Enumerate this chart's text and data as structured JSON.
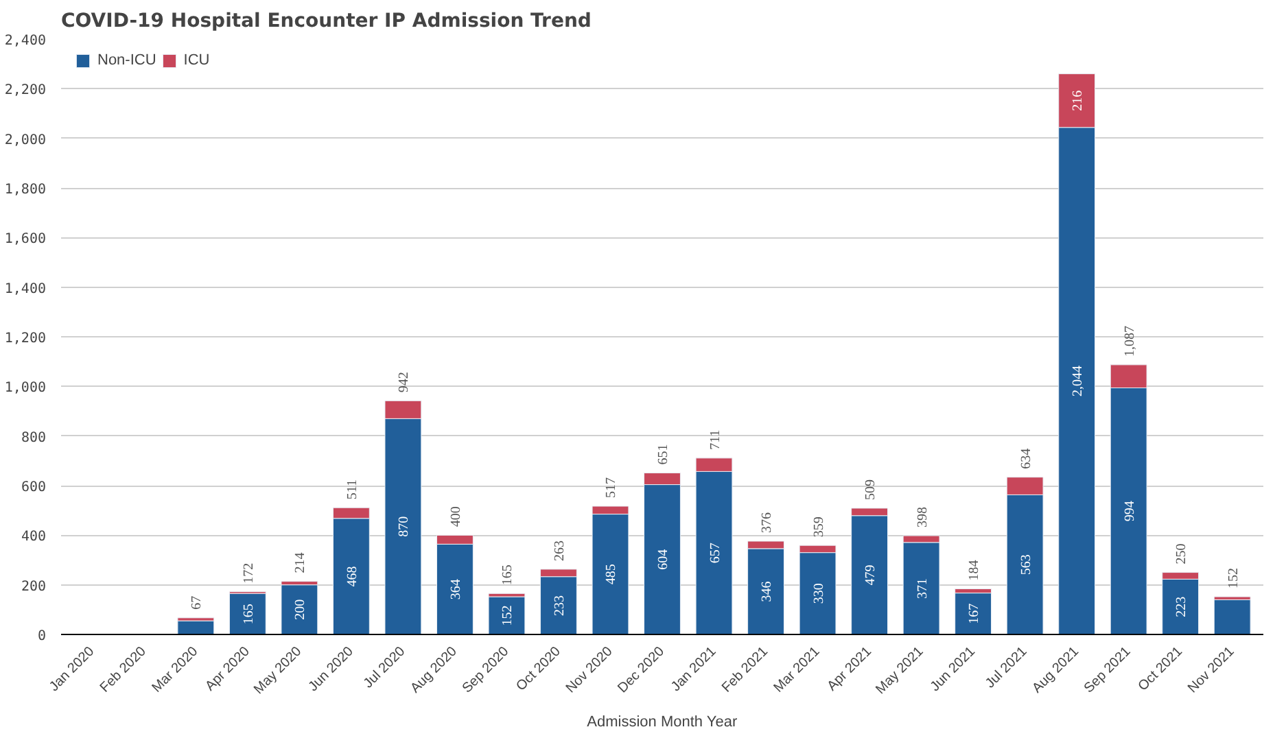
{
  "chart_data": {
    "type": "bar",
    "title": "COVID-19 Hospital Encounter IP Admission Trend",
    "xlabel": "Admission Month Year",
    "categories": [
      "Jan 2020",
      "Feb 2020",
      "Mar 2020",
      "Apr 2020",
      "May 2020",
      "Jun 2020",
      "Jul 2020",
      "Aug 2020",
      "Sep 2020",
      "Oct 2020",
      "Nov 2020",
      "Dec 2020",
      "Jan 2021",
      "Feb 2021",
      "Mar 2021",
      "Apr 2021",
      "May 2021",
      "Jun 2021",
      "Jul 2021",
      "Aug 2021",
      "Sep 2021",
      "Oct 2021",
      "Nov 2021"
    ],
    "stacked": true,
    "series": [
      {
        "name": "Non-ICU",
        "color": "#215f9a",
        "values": [
          null,
          null,
          55,
          165,
          200,
          468,
          870,
          364,
          152,
          233,
          485,
          604,
          657,
          346,
          330,
          479,
          371,
          167,
          563,
          2044,
          994,
          223,
          140
        ],
        "value_labels": [
          null,
          null,
          null,
          "165",
          "200",
          "468",
          "870",
          "364",
          "152",
          "233",
          "485",
          "604",
          "657",
          "346",
          "330",
          "479",
          "371",
          "167",
          "563",
          "2,044",
          "994",
          "223",
          null
        ]
      },
      {
        "name": "ICU",
        "color": "#c8465a",
        "values": [
          null,
          null,
          12,
          7,
          14,
          43,
          72,
          36,
          13,
          30,
          32,
          47,
          54,
          30,
          29,
          30,
          27,
          17,
          71,
          216,
          93,
          27,
          12
        ],
        "value_labels": [
          null,
          null,
          null,
          null,
          null,
          null,
          null,
          null,
          null,
          null,
          null,
          null,
          null,
          null,
          null,
          null,
          null,
          null,
          null,
          "216",
          null,
          null,
          null
        ]
      }
    ],
    "totals": [
      null,
      null,
      "67",
      "172",
      "214",
      "511",
      "942",
      "400",
      "165",
      "263",
      "517",
      "651",
      "711",
      "376",
      "359",
      "509",
      "398",
      "184",
      "634",
      null,
      "1,087",
      "250",
      "152"
    ],
    "ylim": [
      0,
      2400
    ],
    "yticks": [
      {
        "value": 0,
        "label": "0"
      },
      {
        "value": 200,
        "label": "200"
      },
      {
        "value": 400,
        "label": "400"
      },
      {
        "value": 600,
        "label": "600"
      },
      {
        "value": 800,
        "label": "800"
      },
      {
        "value": 1000,
        "label": "1,000"
      },
      {
        "value": 1200,
        "label": "1,200"
      },
      {
        "value": 1400,
        "label": "1,400"
      },
      {
        "value": 1600,
        "label": "1,600"
      },
      {
        "value": 1800,
        "label": "1,800"
      },
      {
        "value": 2000,
        "label": "2,000"
      },
      {
        "value": 2200,
        "label": "2,200"
      },
      {
        "value": 2400,
        "label": "2,400"
      }
    ],
    "grid": "y",
    "legend": "top left"
  }
}
